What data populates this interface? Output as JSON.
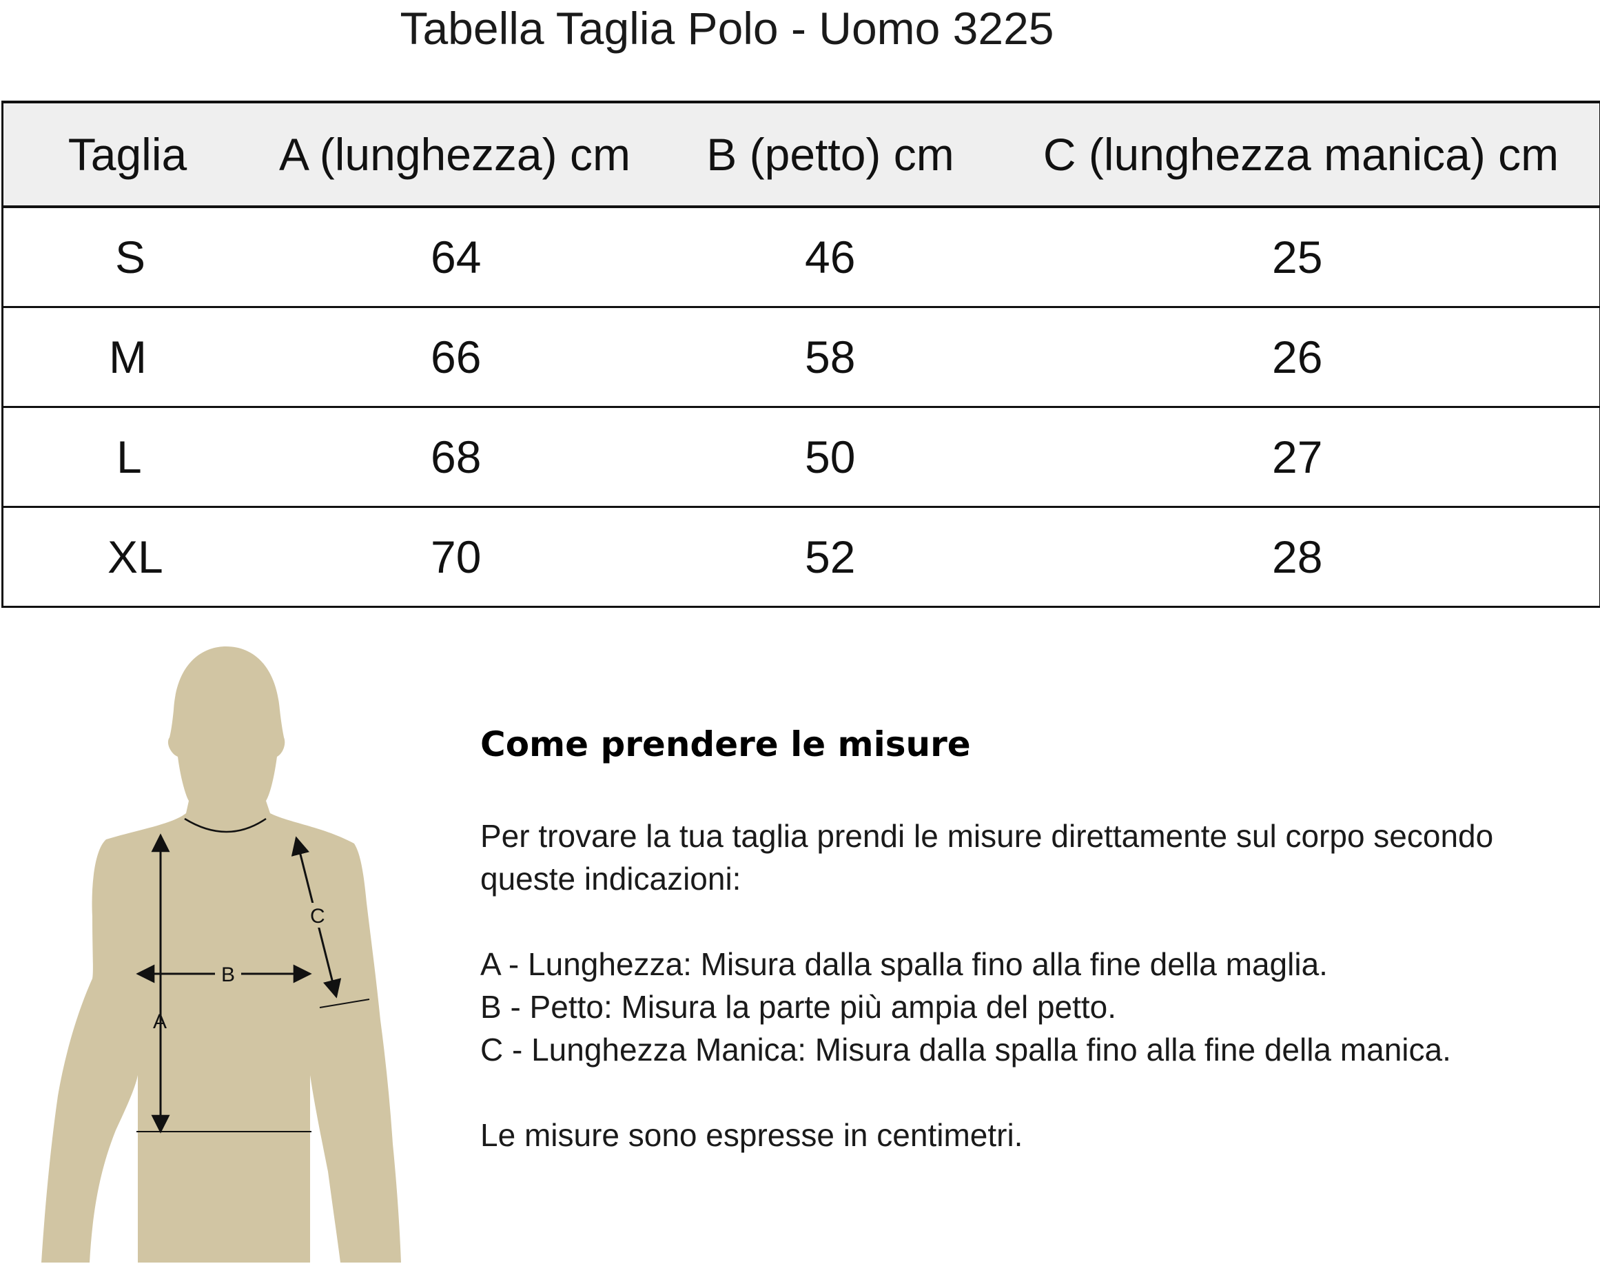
{
  "title": "Tabella Taglia Polo - Uomo 3225",
  "table": {
    "headers": [
      "Taglia",
      "A (lunghezza) cm",
      "B (petto) cm",
      "C (lunghezza manica) cm"
    ],
    "rows": [
      [
        "S",
        "64",
        "46",
        "25"
      ],
      [
        "M",
        "66",
        "58",
        "26"
      ],
      [
        "L",
        "68",
        "50",
        "27"
      ],
      [
        "XL",
        "70",
        "52",
        "28"
      ]
    ]
  },
  "figure": {
    "labels": {
      "a": "A",
      "b": "B",
      "c": "C"
    },
    "body_color": "#d1c5a3"
  },
  "instructions": {
    "heading": "Come prendere le misure",
    "intro": "Per trovare la tua taglia prendi le misure direttamente sul corpo secondo queste indicazioni:",
    "items": [
      "A - Lunghezza: Misura dalla spalla fino alla fine della maglia.",
      "B - Petto: Misura la parte più ampia del petto.",
      "C - Lunghezza Manica: Misura dalla spalla fino alla fine della manica."
    ],
    "footer": "Le misure sono espresse in centimetri."
  }
}
